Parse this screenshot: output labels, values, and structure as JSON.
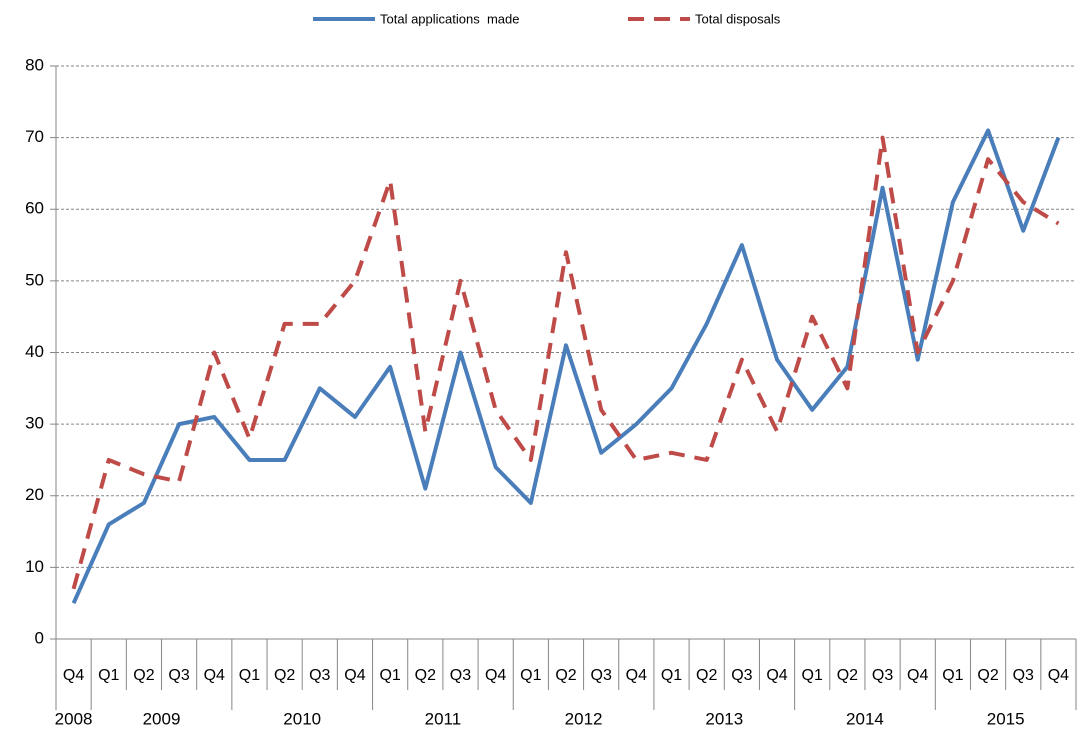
{
  "chart_data": {
    "type": "line",
    "categories": [
      "Q4",
      "Q1",
      "Q2",
      "Q3",
      "Q4",
      "Q1",
      "Q2",
      "Q3",
      "Q4",
      "Q1",
      "Q2",
      "Q3",
      "Q4",
      "Q1",
      "Q2",
      "Q3",
      "Q4",
      "Q1",
      "Q2",
      "Q3",
      "Q4",
      "Q1",
      "Q2",
      "Q3",
      "Q4",
      "Q1",
      "Q2",
      "Q3",
      "Q4"
    ],
    "groups": [
      {
        "name": "2008",
        "count": 1
      },
      {
        "name": "2009",
        "count": 4
      },
      {
        "name": "2010",
        "count": 4
      },
      {
        "name": "2011",
        "count": 4
      },
      {
        "name": "2012",
        "count": 4
      },
      {
        "name": "2013",
        "count": 4
      },
      {
        "name": "2014",
        "count": 4
      },
      {
        "name": "2015",
        "count": 4
      }
    ],
    "series": [
      {
        "name": "Total applications  made",
        "color": "#4a7ebb",
        "dashed": false,
        "values": [
          5,
          16,
          19,
          30,
          31,
          25,
          25,
          35,
          31,
          38,
          21,
          40,
          24,
          19,
          41,
          26,
          30,
          35,
          44,
          55,
          39,
          32,
          38,
          63,
          39,
          61,
          71,
          57,
          70
        ]
      },
      {
        "name": "Total disposals",
        "color": "#be4b48",
        "dashed": true,
        "values": [
          7,
          25,
          23,
          22,
          40,
          28,
          44,
          44,
          50,
          64,
          29,
          50,
          32,
          25,
          54,
          32,
          25,
          26,
          25,
          39,
          29,
          45,
          35,
          70,
          40,
          50,
          67,
          61,
          58
        ]
      }
    ],
    "ylim": [
      0,
      80
    ],
    "yticks": [
      0,
      10,
      20,
      30,
      40,
      50,
      60,
      70,
      80
    ],
    "grid": true,
    "legend": "top"
  }
}
